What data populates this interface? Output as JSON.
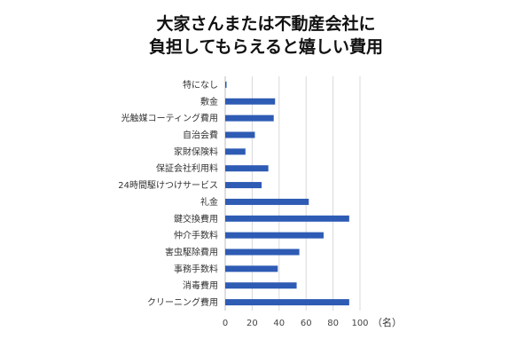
{
  "chart_data": {
    "type": "bar",
    "orientation": "horizontal",
    "title_lines": [
      "大家さんまたは不動産会社に",
      "負担してもらえると嬉しい費用"
    ],
    "categories": [
      "特になし",
      "敷金",
      "光触媒コーティング費用",
      "自治会費",
      "家財保険料",
      "保証会社利用料",
      "24時間駆けつけサービス",
      "礼金",
      "鍵交換費用",
      "仲介手数料",
      "害虫駆除費用",
      "事務手数料",
      "消毒費用",
      "クリーニング費用"
    ],
    "values": [
      1,
      37,
      36,
      22,
      15,
      32,
      27,
      62,
      92,
      73,
      55,
      39,
      53,
      92
    ],
    "xlim": [
      0,
      100
    ],
    "xticks": [
      0,
      20,
      40,
      60,
      80,
      100
    ],
    "unit": "（名）",
    "grid": "vertical",
    "bar_color": "#2e5bb4"
  }
}
